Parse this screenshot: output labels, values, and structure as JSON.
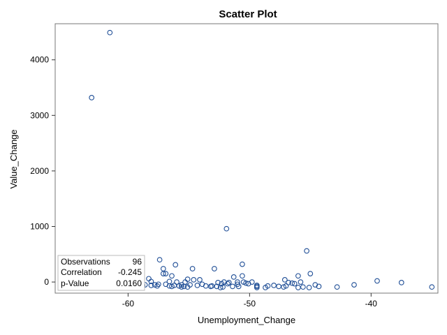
{
  "chart_data": {
    "type": "scatter",
    "title": "Scatter Plot",
    "xlabel": "Unemployment_Change",
    "ylabel": "Value_Change",
    "xlim": [
      -66,
      -34.5
    ],
    "ylim": [
      -200,
      4650
    ],
    "xticks": [
      -60,
      -50,
      -40
    ],
    "yticks": [
      0,
      1000,
      2000,
      3000,
      4000
    ],
    "grid": false,
    "marker": "open-circle",
    "color": "#1f4e96",
    "stats": {
      "placement": "bottom-left",
      "rows": [
        {
          "label": "Observations",
          "value": "96"
        },
        {
          "label": "Correlation",
          "value": "-0.245"
        },
        {
          "label": "p-Value",
          "value": "0.0160"
        }
      ]
    },
    "points": [
      [
        -61.5,
        4490
      ],
      [
        -63.0,
        3320
      ],
      [
        -51.9,
        960
      ],
      [
        -45.3,
        560
      ],
      [
        -57.4,
        400
      ],
      [
        -50.6,
        320
      ],
      [
        -56.1,
        310
      ],
      [
        -57.1,
        240
      ],
      [
        -54.7,
        240
      ],
      [
        -52.9,
        240
      ],
      [
        -61.9,
        230
      ],
      [
        -57.1,
        150
      ],
      [
        -56.9,
        150
      ],
      [
        -45.0,
        150
      ],
      [
        -56.4,
        110
      ],
      [
        -50.6,
        110
      ],
      [
        -46.0,
        110
      ],
      [
        -51.3,
        90
      ],
      [
        -58.3,
        60
      ],
      [
        -55.1,
        50
      ],
      [
        -54.6,
        40
      ],
      [
        -54.1,
        40
      ],
      [
        -47.1,
        40
      ],
      [
        -39.5,
        20
      ],
      [
        -63.2,
        10
      ],
      [
        -58.9,
        10
      ],
      [
        -58.1,
        10
      ],
      [
        -56.6,
        10
      ],
      [
        -56.0,
        0
      ],
      [
        -55.3,
        0
      ],
      [
        -52.6,
        -10
      ],
      [
        -52.1,
        0
      ],
      [
        -51.7,
        -10
      ],
      [
        -51.0,
        0
      ],
      [
        -50.5,
        0
      ],
      [
        -49.8,
        0
      ],
      [
        -46.8,
        -10
      ],
      [
        -46.5,
        -20
      ],
      [
        -45.8,
        0
      ],
      [
        -37.5,
        -10
      ],
      [
        -60.4,
        -20
      ],
      [
        -59.7,
        -30
      ],
      [
        -57.5,
        -40
      ],
      [
        -56.9,
        -40
      ],
      [
        -55.6,
        -50
      ],
      [
        -53.9,
        -40
      ],
      [
        -51.0,
        -40
      ],
      [
        -50.1,
        -30
      ],
      [
        -49.4,
        -60
      ],
      [
        -48.0,
        -60
      ],
      [
        -46.3,
        -30
      ],
      [
        -44.6,
        -50
      ],
      [
        -41.4,
        -50
      ],
      [
        -62.5,
        -50
      ],
      [
        -61.1,
        -60
      ],
      [
        -58.8,
        -60
      ],
      [
        -58.1,
        -60
      ],
      [
        -57.6,
        -70
      ],
      [
        -56.6,
        -70
      ],
      [
        -55.8,
        -70
      ],
      [
        -55.4,
        -80
      ],
      [
        -54.3,
        -60
      ],
      [
        -53.1,
        -70
      ],
      [
        -52.7,
        -80
      ],
      [
        -51.4,
        -80
      ],
      [
        -50.9,
        -80
      ],
      [
        -49.4,
        -80
      ],
      [
        -48.5,
        -70
      ],
      [
        -47.0,
        -70
      ],
      [
        -45.6,
        -90
      ],
      [
        -44.3,
        -80
      ],
      [
        -42.8,
        -90
      ],
      [
        -35.0,
        -90
      ],
      [
        -65.4,
        -60
      ],
      [
        -60.2,
        -40
      ],
      [
        -59.5,
        -50
      ],
      [
        -58.6,
        -50
      ],
      [
        -57.8,
        -50
      ],
      [
        -56.2,
        -60
      ],
      [
        -55.6,
        -90
      ],
      [
        -55.1,
        -90
      ],
      [
        -53.2,
        -80
      ],
      [
        -52.4,
        -100
      ],
      [
        -52.2,
        -90
      ],
      [
        -49.4,
        -100
      ],
      [
        -48.7,
        -100
      ],
      [
        -47.2,
        -90
      ],
      [
        -46.0,
        -100
      ],
      [
        -45.1,
        -100
      ],
      [
        -56.4,
        -80
      ],
      [
        -54.9,
        -50
      ],
      [
        -51.8,
        -30
      ],
      [
        -50.3,
        -20
      ],
      [
        -47.6,
        -80
      ],
      [
        -52.3,
        -30
      ],
      [
        -53.6,
        -70
      ]
    ]
  }
}
